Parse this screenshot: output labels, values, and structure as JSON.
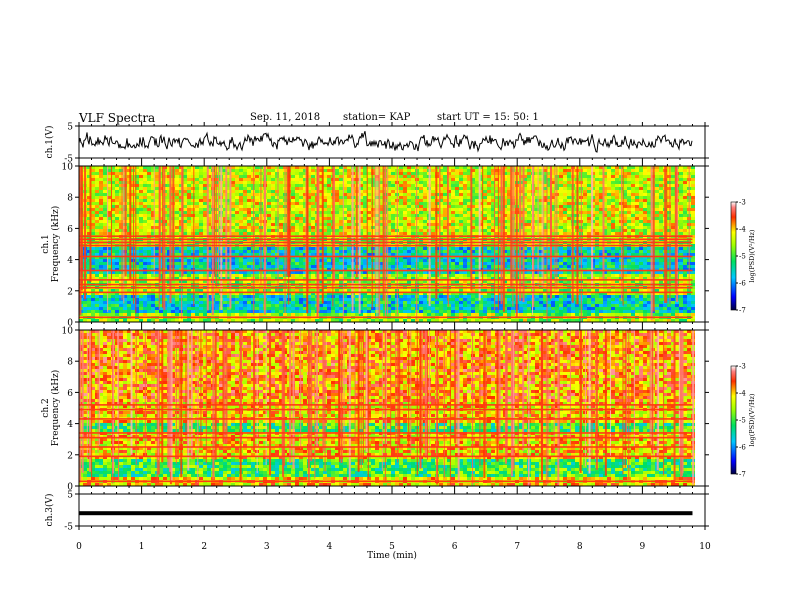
{
  "header": {
    "title": "VLF Spectra",
    "date": "Sep. 11, 2018",
    "station": "station= KAP",
    "start": "start  UT  =   15: 50: 1"
  },
  "chart_data": {
    "type": "heatmap",
    "x": {
      "label": "Time  (min)",
      "range": [
        0,
        10
      ],
      "ticks": [
        "0",
        "1",
        "2",
        "3",
        "4",
        "5",
        "6",
        "7",
        "8",
        "9",
        "10"
      ],
      "data_end": 9.8
    },
    "panels": [
      {
        "kind": "waveform",
        "ylabel": "ch.1(V)",
        "ylim": [
          -5,
          5
        ],
        "yticks": [
          "5",
          "-5"
        ],
        "trace": "noisy signal around 0 V, amplitude about ±2 V"
      },
      {
        "kind": "spectrogram",
        "ylabel_line1": "ch.1",
        "ylabel_line2": "Frequency  (kHz)",
        "ylim": [
          0,
          10
        ],
        "yticks": [
          "0",
          "2",
          "4",
          "6",
          "8",
          "10"
        ],
        "colorbar": {
          "label": "log(PSD)(V²/Hz)",
          "range": [
            -7,
            -3
          ],
          "ticks": [
            "-3",
            "-4",
            "-5",
            "-6",
            "-7"
          ]
        },
        "background_level": -4.6,
        "quiet_bands_khz": [
          [
            3.2,
            4.9
          ],
          [
            0.6,
            1.9
          ]
        ],
        "strong_lines_khz": [
          5.5,
          5.3,
          5.1,
          4.9,
          4.2,
          3.3,
          2.7,
          2.4,
          2.2,
          1.9,
          0.3
        ]
      },
      {
        "kind": "spectrogram",
        "ylabel_line1": "ch.2",
        "ylabel_line2": "Frequency  (kHz)",
        "ylim": [
          0,
          10
        ],
        "yticks": [
          "0",
          "2",
          "4",
          "6",
          "8",
          "10"
        ],
        "colorbar": {
          "label": "log(PSD)(V²/Hz)",
          "range": [
            -7,
            -3
          ],
          "ticks": [
            "-3",
            "-4",
            "-5",
            "-6",
            "-7"
          ]
        },
        "background_level": -4.1,
        "quiet_bands_khz": [
          [
            0.6,
            1.9
          ],
          [
            3.6,
            4.2
          ]
        ],
        "strong_lines_khz": [
          5.2,
          4.9,
          4.3,
          3.4,
          3.1,
          2.5,
          1.9,
          0.3
        ]
      },
      {
        "kind": "waveform",
        "ylabel": "ch.3(V)",
        "ylim": [
          -5,
          5
        ],
        "yticks": [
          "5",
          "-5"
        ],
        "trace": "flat line near -1 V"
      }
    ]
  }
}
